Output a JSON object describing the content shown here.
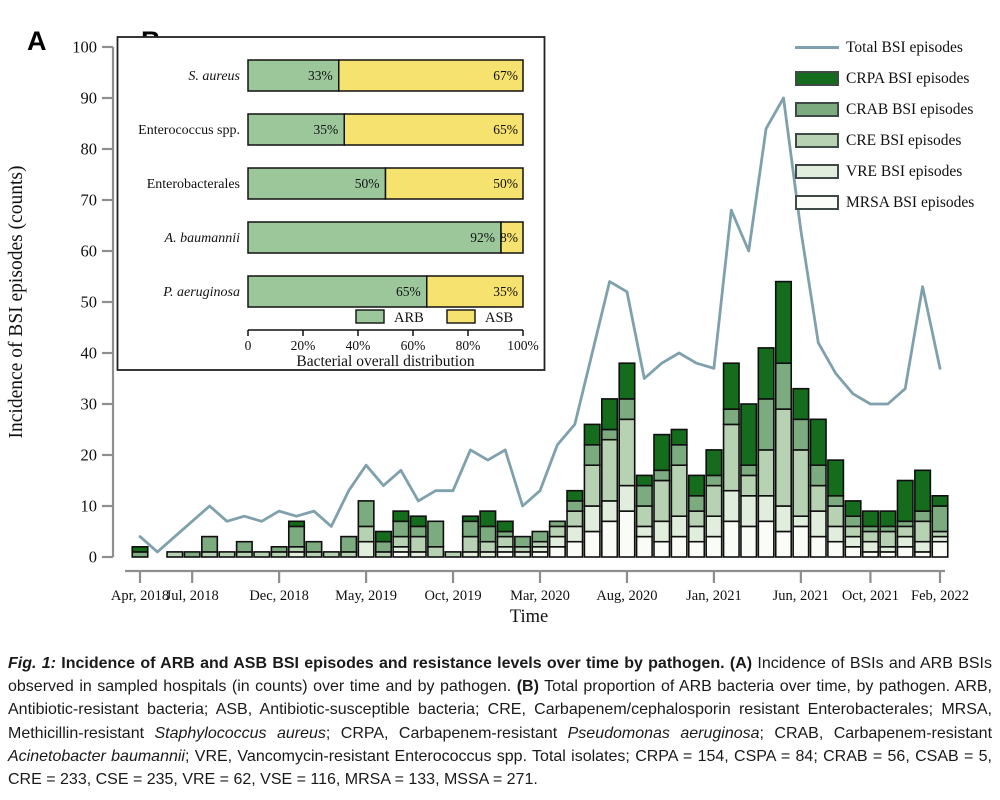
{
  "panel_a": {
    "label": "A",
    "y_axis": {
      "title": "Incidence of BSI episodes (counts)",
      "min": 0,
      "max": 100,
      "step": 10
    },
    "x_axis": {
      "title": "Time",
      "tick_labels": [
        "Apr, 2018",
        "Jul, 2018",
        "Dec, 2018",
        "May, 2019",
        "Oct, 2019",
        "Mar, 2020",
        "Aug, 2020",
        "Jan, 2021",
        "Jun, 2021",
        "Oct, 2021",
        "Feb, 2022"
      ],
      "tick_month_indices": [
        0,
        3,
        8,
        13,
        18,
        23,
        28,
        33,
        38,
        42,
        46
      ]
    },
    "chart_data": {
      "type": "line+stacked-bar",
      "months": [
        "Apr 2018",
        "May 2018",
        "Jun 2018",
        "Jul 2018",
        "Aug 2018",
        "Sep 2018",
        "Oct 2018",
        "Nov 2018",
        "Dec 2018",
        "Jan 2019",
        "Feb 2019",
        "Mar 2019",
        "Apr 2019",
        "May 2019",
        "Jun 2019",
        "Jul 2019",
        "Aug 2019",
        "Sep 2019",
        "Oct 2019",
        "Nov 2019",
        "Dec 2019",
        "Jan 2020",
        "Feb 2020",
        "Mar 2020",
        "Apr 2020",
        "May 2020",
        "Jun 2020",
        "Jul 2020",
        "Aug 2020",
        "Sep 2020",
        "Oct 2020",
        "Nov 2020",
        "Dec 2020",
        "Jan 2021",
        "Feb 2021",
        "Mar 2021",
        "Apr 2021",
        "May 2021",
        "Jun 2021",
        "Jul 2021",
        "Aug 2021",
        "Sep 2021",
        "Oct 2021",
        "Nov 2021",
        "Dec 2021",
        "Jan 2022",
        "Feb 2022"
      ],
      "line_series": {
        "name": "Total BSI episodes",
        "values": [
          4,
          1,
          4,
          7,
          10,
          7,
          8,
          7,
          9,
          8,
          9,
          6,
          13,
          18,
          14,
          17,
          11,
          13,
          13,
          21,
          19,
          21,
          10,
          13,
          22,
          26,
          40,
          54,
          52,
          35,
          38,
          40,
          38,
          37,
          68,
          60,
          84,
          90,
          64,
          42,
          36,
          32,
          30,
          30,
          33,
          53,
          37
        ]
      },
      "bar_series": [
        {
          "name": "MRSA BSI episodes",
          "color": "#fafcf7",
          "values": [
            0,
            0,
            0,
            0,
            0,
            0,
            0,
            0,
            0,
            0,
            0,
            0,
            0,
            0,
            0,
            1,
            0,
            0,
            0,
            0,
            0,
            1,
            0,
            1,
            2,
            3,
            5,
            7,
            9,
            4,
            3,
            4,
            3,
            4,
            7,
            6,
            7,
            5,
            6,
            4,
            3,
            2,
            1,
            1,
            2,
            1,
            3
          ]
        },
        {
          "name": "VRE BSI episodes",
          "color": "#e2eedd",
          "values": [
            0,
            0,
            0,
            0,
            0,
            0,
            0,
            0,
            0,
            1,
            0,
            0,
            0,
            3,
            0,
            1,
            1,
            0,
            0,
            1,
            1,
            1,
            1,
            1,
            2,
            3,
            5,
            4,
            5,
            2,
            4,
            4,
            3,
            4,
            6,
            6,
            5,
            5,
            2,
            5,
            3,
            2,
            2,
            1,
            2,
            2,
            1
          ]
        },
        {
          "name": "CRE BSI episodes",
          "color": "#b7d2b2",
          "values": [
            0,
            0,
            1,
            0,
            1,
            1,
            1,
            1,
            1,
            1,
            1,
            1,
            1,
            3,
            1,
            2,
            3,
            2,
            1,
            3,
            2,
            2,
            1,
            1,
            2,
            3,
            8,
            12,
            13,
            4,
            8,
            10,
            3,
            6,
            13,
            4,
            9,
            19,
            13,
            5,
            4,
            2,
            2,
            3,
            2,
            4,
            1
          ]
        },
        {
          "name": "CRAB BSI episodes",
          "color": "#7dab80",
          "values": [
            1,
            0,
            0,
            1,
            3,
            0,
            2,
            0,
            1,
            4,
            2,
            0,
            3,
            5,
            2,
            3,
            2,
            5,
            0,
            3,
            3,
            1,
            2,
            2,
            1,
            2,
            4,
            2,
            4,
            4,
            2,
            4,
            3,
            2,
            3,
            2,
            10,
            9,
            6,
            4,
            2,
            2,
            1,
            1,
            1,
            2,
            5
          ]
        },
        {
          "name": "CRPA BSI episodes",
          "color": "#156c1c",
          "values": [
            1,
            0,
            0,
            0,
            0,
            0,
            0,
            0,
            0,
            1,
            0,
            0,
            0,
            0,
            2,
            2,
            2,
            0,
            0,
            1,
            3,
            2,
            0,
            0,
            0,
            2,
            4,
            6,
            7,
            2,
            7,
            3,
            4,
            5,
            9,
            12,
            10,
            16,
            6,
            9,
            7,
            3,
            3,
            3,
            8,
            8,
            2
          ]
        }
      ]
    }
  },
  "panel_b": {
    "label": "B",
    "chart_data": {
      "type": "stacked-bar-horizontal",
      "categories": [
        "S. aureus",
        "Enterococcus spp.",
        "Enterobacterales",
        "A. baumannii",
        "P. aeruginosa"
      ],
      "categories_italic": [
        true,
        false,
        false,
        true,
        true
      ],
      "series": [
        {
          "name": "ARB",
          "color": "#9cc79b",
          "values": [
            33,
            35,
            50,
            92,
            65
          ]
        },
        {
          "name": "ASB",
          "color": "#f6e26e",
          "values": [
            67,
            65,
            50,
            8,
            35
          ]
        }
      ],
      "bar_labels_arb": [
        "33%",
        "35%",
        "50%",
        "92%",
        "65%"
      ],
      "bar_labels_asb": [
        "67%",
        "65%",
        "50%",
        "8%",
        "35%"
      ],
      "x_tick_labels": [
        "0",
        "20%",
        "40%",
        "60%",
        "80%",
        "100%"
      ],
      "xlabel": "Bacterial overall distribution",
      "xlim": [
        0,
        100
      ],
      "legend": [
        "ARB",
        "ASB"
      ]
    }
  },
  "legend": {
    "items": [
      {
        "label": "Total BSI episodes",
        "swatch": "line",
        "color": "#7fa0ad"
      },
      {
        "label": "CRPA BSI episodes",
        "swatch": "box",
        "color": "#156c1c"
      },
      {
        "label": "CRAB BSI episodes",
        "swatch": "box",
        "color": "#7dab80"
      },
      {
        "label": "CRE BSI episodes",
        "swatch": "box",
        "color": "#b7d2b2"
      },
      {
        "label": "VRE BSI episodes",
        "swatch": "box",
        "color": "#e2eedd"
      },
      {
        "label": "MRSA BSI episodes",
        "swatch": "box",
        "color": "#fafcf7"
      }
    ]
  },
  "caption": {
    "runs": [
      {
        "s": "bi",
        "t": "Fig. 1: "
      },
      {
        "s": "b",
        "t": "Incidence of ARB and ASB BSI episodes and resistance levels over time by pathogen. "
      },
      {
        "s": "b",
        "t": "(A)"
      },
      {
        "s": "r",
        "t": " Incidence of BSIs and ARB BSIs observed in sampled hospitals (in counts) over time and by pathogen. "
      },
      {
        "s": "b",
        "t": "(B)"
      },
      {
        "s": "r",
        "t": " Total proportion of ARB bacteria over time, by pathogen. ARB, Antibiotic-resistant bacteria; ASB, Antibiotic-susceptible bacteria; CRE, Carbapenem/cephalosporin resistant Enterobacterales; MRSA, Methicillin-resistant "
      },
      {
        "s": "i",
        "t": "Staphylococcus aureus"
      },
      {
        "s": "r",
        "t": "; CRPA, Carbapenem-resistant "
      },
      {
        "s": "i",
        "t": "Pseudomonas aeruginosa"
      },
      {
        "s": "r",
        "t": "; CRAB, Carbapenem-resistant "
      },
      {
        "s": "i",
        "t": "Acinetobacter baumannii"
      },
      {
        "s": "r",
        "t": "; VRE, Vancomycin-resistant Enterococcus spp. Total isolates; CRPA = 154, CSPA = 84; CRAB = 56, CSAB = 5, CRE = 233, CSE = 235, VRE = 62, VSE = 116, MRSA = 133, MSSA = 271."
      }
    ]
  },
  "colors": {
    "axis": "#8e8e8e",
    "total_line": "#7fa0ad",
    "bar_stroke": "#0f0f0f",
    "inset_border": "#222222",
    "arb": "#9cc79b",
    "asb": "#f6e26e"
  }
}
